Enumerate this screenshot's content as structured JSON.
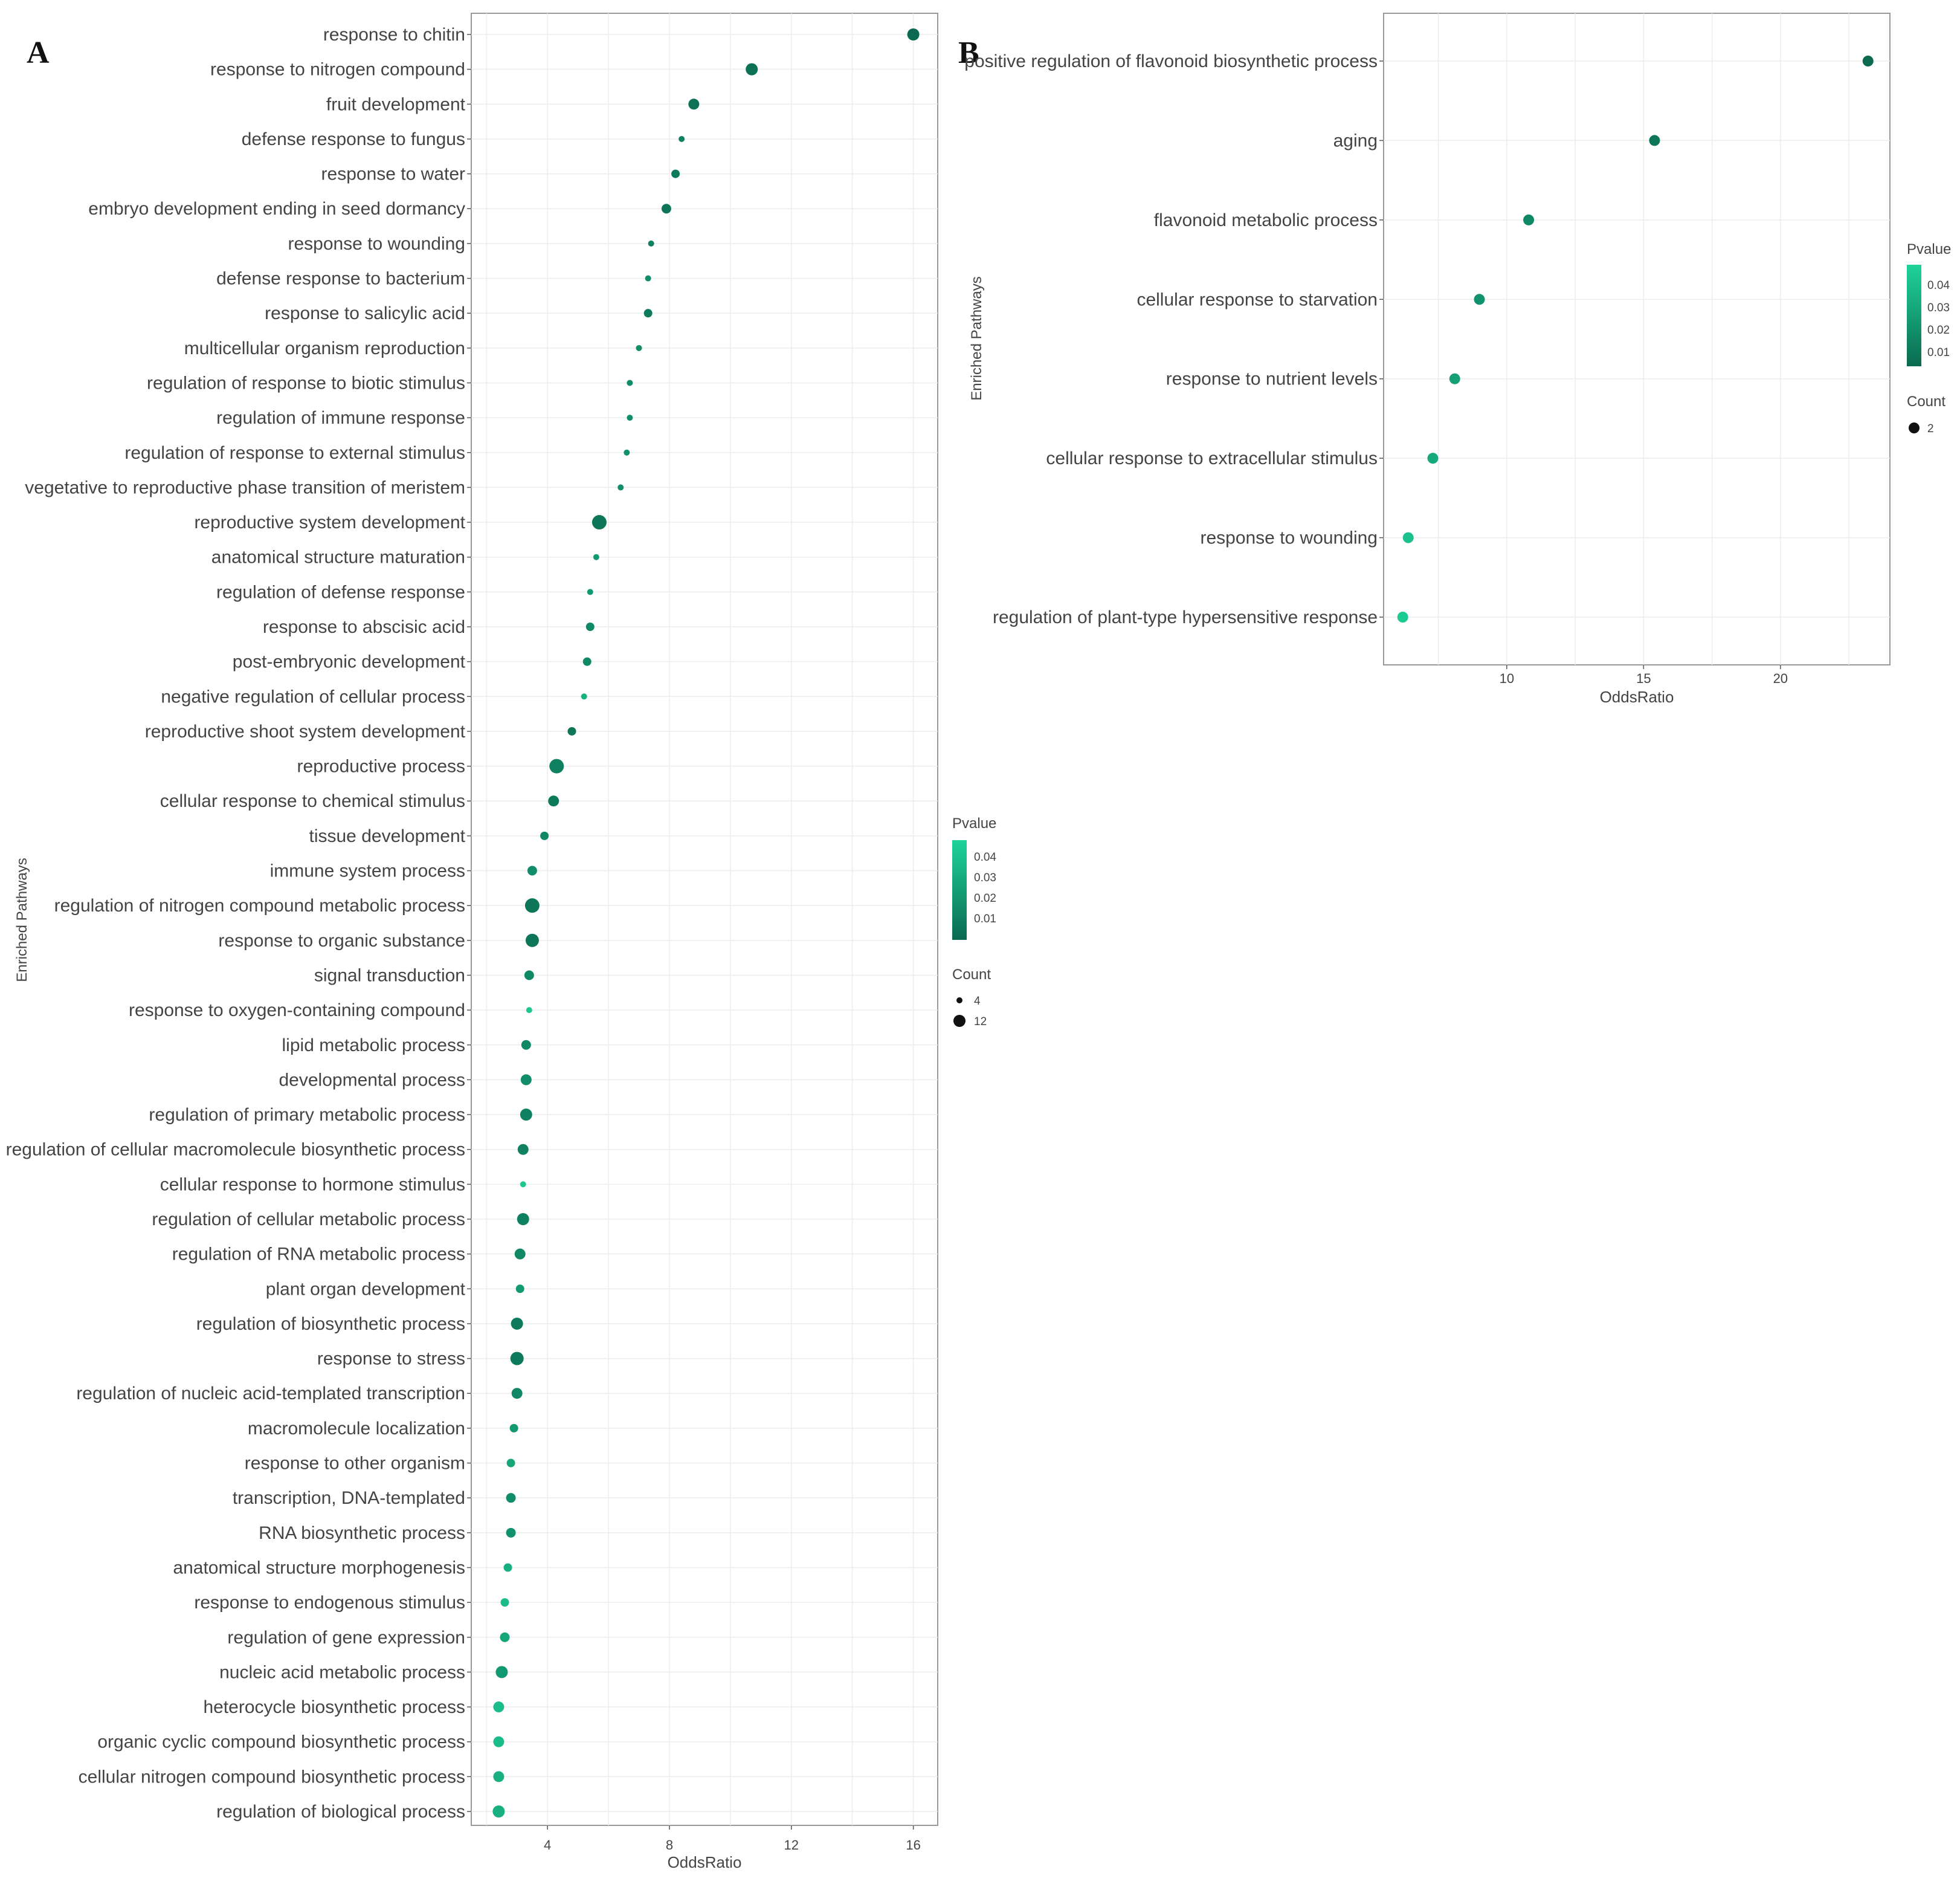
{
  "chart_data": [
    {
      "panel": "A",
      "type": "scatter",
      "xlabel": "OddsRatio",
      "ylabel": "Enriched Pathways",
      "xlim": [
        1.5,
        16.8
      ],
      "xticks": [
        4,
        8,
        12,
        16
      ],
      "grid": true,
      "categories": [
        "response to chitin",
        "response to nitrogen compound",
        "fruit development",
        "defense response to fungus",
        "response to water",
        "embryo development ending in seed dormancy",
        "response to wounding",
        "defense response to bacterium",
        "response to salicylic acid",
        "multicellular organism reproduction",
        "regulation of response to biotic stimulus",
        "regulation of immune response",
        "regulation of response to external stimulus",
        "vegetative to reproductive phase transition of meristem",
        "reproductive system development",
        "anatomical structure maturation",
        "regulation of defense response",
        "response to abscisic acid",
        "post-embryonic development",
        "negative regulation of cellular process",
        "reproductive shoot system development",
        "reproductive process",
        "cellular response to chemical stimulus",
        "tissue development",
        "immune system process",
        "regulation of nitrogen compound metabolic process",
        "response to organic substance",
        "signal transduction",
        "response to oxygen-containing compound",
        "lipid metabolic process",
        "developmental process",
        "regulation of primary metabolic process",
        "regulation of cellular macromolecule biosynthetic process",
        "cellular response to hormone stimulus",
        "regulation of cellular metabolic process",
        "regulation of RNA metabolic process",
        "plant organ development",
        "regulation of biosynthetic process",
        "response to stress",
        "regulation of nucleic acid-templated transcription",
        "macromolecule localization",
        "response to other organism",
        "transcription, DNA-templated",
        "RNA biosynthetic process",
        "anatomical structure morphogenesis",
        "response to endogenous stimulus",
        "regulation of gene expression",
        "nucleic acid metabolic process",
        "heterocycle biosynthetic process",
        "organic cyclic compound biosynthetic process",
        "cellular nitrogen compound biosynthetic process",
        "regulation of biological process"
      ],
      "odds_ratio": [
        16.0,
        10.7,
        8.8,
        8.4,
        8.2,
        7.9,
        7.4,
        7.3,
        7.3,
        7.0,
        6.7,
        6.7,
        6.6,
        6.4,
        5.7,
        5.6,
        5.4,
        5.4,
        5.3,
        5.2,
        4.8,
        4.3,
        4.2,
        3.9,
        3.5,
        3.5,
        3.5,
        3.4,
        3.4,
        3.3,
        3.3,
        3.3,
        3.2,
        3.2,
        3.2,
        3.1,
        3.1,
        3.0,
        3.0,
        3.0,
        2.9,
        2.8,
        2.8,
        2.8,
        2.7,
        2.6,
        2.6,
        2.5,
        2.4,
        2.4,
        2.4,
        2.4
      ],
      "pvalue": [
        0.005,
        0.008,
        0.008,
        0.015,
        0.012,
        0.01,
        0.015,
        0.02,
        0.012,
        0.02,
        0.02,
        0.02,
        0.022,
        0.02,
        0.01,
        0.025,
        0.025,
        0.018,
        0.018,
        0.035,
        0.01,
        0.015,
        0.012,
        0.018,
        0.02,
        0.01,
        0.01,
        0.018,
        0.045,
        0.018,
        0.02,
        0.015,
        0.015,
        0.045,
        0.015,
        0.018,
        0.025,
        0.012,
        0.012,
        0.018,
        0.025,
        0.03,
        0.02,
        0.022,
        0.035,
        0.04,
        0.03,
        0.025,
        0.04,
        0.04,
        0.035,
        0.035
      ],
      "count": [
        8,
        8,
        7,
        3,
        5,
        6,
        3,
        3,
        5,
        3,
        3,
        3,
        3,
        3,
        10,
        3,
        3,
        5,
        5,
        3,
        5,
        10,
        7,
        5,
        6,
        10,
        9,
        6,
        3,
        6,
        7,
        8,
        7,
        3,
        8,
        7,
        5,
        8,
        9,
        7,
        5,
        5,
        6,
        6,
        5,
        5,
        6,
        8,
        7,
        7,
        7,
        8
      ],
      "legend": {
        "pvalue_title": "Pvalue",
        "pvalue_ticks": [
          "0.04",
          "0.03",
          "0.02",
          "0.01"
        ],
        "count_title": "Count",
        "count_values": [
          4,
          12
        ],
        "count_labels": [
          "4",
          "12"
        ]
      }
    },
    {
      "panel": "B",
      "type": "scatter",
      "xlabel": "OddsRatio",
      "ylabel": "Enriched Pathways",
      "xlim": [
        5.5,
        24.0
      ],
      "xticks": [
        10,
        15,
        20
      ],
      "grid": true,
      "categories": [
        "positive regulation of flavonoid biosynthetic process",
        "aging",
        "flavonoid metabolic process",
        "cellular response to starvation",
        "response to nutrient levels",
        "cellular response to extracellular stimulus",
        "response to wounding",
        "regulation of plant-type hypersensitive response"
      ],
      "odds_ratio": [
        23.2,
        15.4,
        10.8,
        9.0,
        8.1,
        7.3,
        6.4,
        6.2
      ],
      "pvalue": [
        0.005,
        0.01,
        0.018,
        0.022,
        0.028,
        0.032,
        0.042,
        0.046
      ],
      "count": [
        2,
        2,
        2,
        2,
        2,
        2,
        2,
        2
      ],
      "legend": {
        "pvalue_title": "Pvalue",
        "pvalue_ticks": [
          "0.04",
          "0.03",
          "0.02",
          "0.01"
        ],
        "count_title": "Count",
        "count_values": [
          2
        ],
        "count_labels": [
          "2"
        ]
      }
    }
  ],
  "panel_labels": [
    "A",
    "B"
  ]
}
